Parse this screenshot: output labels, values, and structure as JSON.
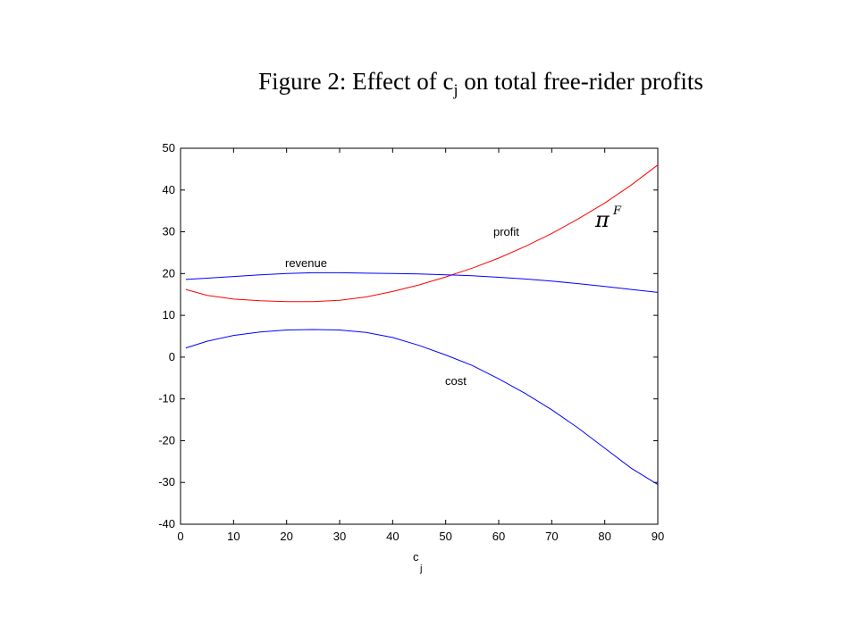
{
  "chart_data": {
    "type": "line",
    "title_main": "Figure 2: Effect of c",
    "title_sub": "j",
    "title_rest": " on total free-rider profits",
    "xlabel_main": "c",
    "xlabel_sub": "j",
    "ylabel": "",
    "xlim": [
      0,
      90
    ],
    "ylim": [
      -40,
      50
    ],
    "xticks": [
      0,
      10,
      20,
      30,
      40,
      50,
      60,
      70,
      80,
      90
    ],
    "yticks": [
      -40,
      -30,
      -20,
      -10,
      0,
      10,
      20,
      30,
      40,
      50
    ],
    "grid": false,
    "x": [
      1,
      5,
      10,
      15,
      20,
      25,
      30,
      35,
      40,
      45,
      50,
      55,
      60,
      65,
      70,
      75,
      80,
      85,
      90
    ],
    "series": [
      {
        "color": "#ff0000",
        "values": [
          16.2,
          14.8,
          13.9,
          13.5,
          13.3,
          13.3,
          13.6,
          14.4,
          15.7,
          17.3,
          19.2,
          21.3,
          23.7,
          26.5,
          29.6,
          33.1,
          36.9,
          41.2,
          46.0
        ]
      },
      {
        "color": "#0000ff",
        "values": [
          18.6,
          18.9,
          19.3,
          19.7,
          20.0,
          20.2,
          20.2,
          20.1,
          20.0,
          19.9,
          19.7,
          19.5,
          19.1,
          18.7,
          18.2,
          17.6,
          16.9,
          16.2,
          15.5
        ]
      },
      {
        "color": "#0000ff",
        "values": [
          2.2,
          3.8,
          5.2,
          6.0,
          6.5,
          6.6,
          6.5,
          5.9,
          4.7,
          2.8,
          0.5,
          -2.0,
          -5.2,
          -8.7,
          -12.6,
          -17.0,
          -21.8,
          -26.6,
          -30.5
        ]
      }
    ],
    "annotations": {
      "profit": "profit",
      "revenue": "revenue",
      "cost": "cost",
      "pi_symbol": "π",
      "pi_superscript": "F"
    }
  }
}
